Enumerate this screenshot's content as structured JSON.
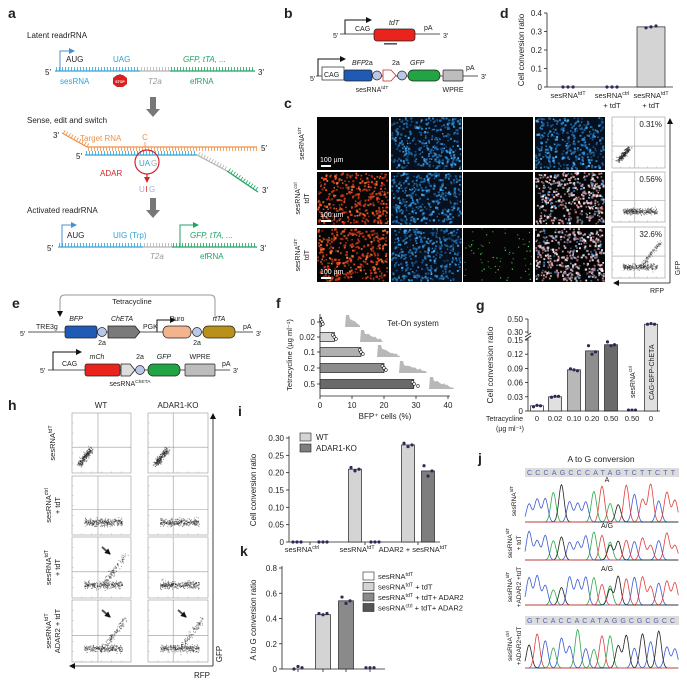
{
  "panel_labels": {
    "a": "a",
    "b": "b",
    "c": "c",
    "d": "d",
    "e": "e",
    "f": "f",
    "g": "g",
    "h": "h",
    "i": "i",
    "j": "j",
    "k": "k"
  },
  "ends": {
    "five": "5′",
    "three": "3′"
  },
  "colors": {
    "blue": "#2ea3d6",
    "gray": "#b3b3b3",
    "green": "#1fa463",
    "orange": "#ef9149",
    "red": "#d0262b",
    "pale": "#9fb3d9",
    "bfp": "#1f5bb5",
    "tdt": "#e8241d",
    "gfp": "#22a444",
    "wpre": "#bdbdbd",
    "puro": "#f2b48c",
    "rtta": "#b8901a",
    "cheta": "#7a7a7a",
    "dot": "#2b2b55"
  },
  "a": {
    "latent_title": "Latent readrRNA",
    "sense_title": "Sense, edit and switch",
    "activated_title": "Activated readrRNA",
    "aug": "AUG",
    "uag": "UAG",
    "payload": "GFP, tTA, ...",
    "sesrna": "sesRNA",
    "t2a": "T2a",
    "efrna": "efRNA",
    "stop": "STOP",
    "target_rna": "Target RNA",
    "c_base": "C",
    "ua": "UA",
    "g_base": "G",
    "adar": "ADAR",
    "uig": {
      "u": "U",
      "i": "I",
      "g": "G"
    },
    "uig_trp": "UIG (Trp)"
  },
  "b": {
    "cag": "CAG",
    "tdt": "tdT",
    "pa": "pA",
    "bfp": "BFP",
    "two_a": "2a",
    "gfp": "GFP",
    "wpre": "WPRE",
    "sesrna": {
      "base": "sesRNA",
      "sup": "tdT"
    }
  },
  "c": {
    "rows": [
      {
        "base": "sesRNA",
        "sup": "tdT"
      },
      {
        "base": "sesRNA",
        "sup": "ctrl",
        "line2": "tdT"
      },
      {
        "base": "sesRNA",
        "sup": "tdT",
        "line2": "tdT"
      }
    ],
    "scale_bar": "100 µm",
    "percentages": [
      "0.31%",
      "0.56%",
      "32.6%"
    ],
    "flow_xlabel": "RFP",
    "flow_ylabel": "GFP"
  },
  "e": {
    "tetracycline": "Tetracycline",
    "tre3g": "TRE3g",
    "bfp": "BFP",
    "cheta": "ChETA",
    "pgk": "PGK",
    "puro": "Puro",
    "rtta": "rtTA",
    "two_a": "2a",
    "pa": "pA",
    "cag": "CAG",
    "mch": "mCh",
    "gfp": "GFP",
    "wpre": "WPRE",
    "sesrna": {
      "base": "sesRNA",
      "sup": "ChETA"
    }
  },
  "h": {
    "columns": [
      "WT",
      "ADAR1-KO"
    ],
    "rows": [
      {
        "base": "sesRNA",
        "sup": "tdT"
      },
      {
        "base": "sesRNA",
        "sup": "ctrl",
        "line2": "+ tdT"
      },
      {
        "base": "sesRNA",
        "sup": "tdT",
        "line2": "+ tdT"
      },
      {
        "base": "sesRNA",
        "sup": "tdT",
        "line2": "ADAR2 + tdT"
      }
    ],
    "xlabel": "RFP",
    "ylabel": "GFP"
  },
  "j": {
    "title": "A to G conversion",
    "sequence_top": "CCCAGCCCATAGTCTTCTT",
    "sequence_bottom": "GTCACCACATAGGCGCGCC",
    "rows": [
      {
        "base": "sesRNA",
        "sup": "tdT"
      },
      {
        "base": "sesRNA",
        "sup": "tdT",
        "line2": "+ tdT"
      },
      {
        "base": "sesRNA",
        "sup": "tdT",
        "line2": "+ADAR2 +tdT"
      },
      {
        "base": "sesRNA",
        "sup": "ctrl",
        "line2": "+ADAR2+tdT"
      }
    ],
    "peak_calls": [
      "A",
      "A/G",
      "A/G"
    ],
    "base_colors": {
      "A": "#2eaa4a",
      "C": "#3b5bd6",
      "G": "#222222",
      "T": "#e04040"
    }
  },
  "chart_data": [
    {
      "type": "bar",
      "ylabel": "Cell conversion ratio",
      "ylim": [
        0,
        0.4
      ],
      "ytick_values": [
        0,
        0.1,
        0.2,
        0.3,
        0.4
      ],
      "ytick_labels": [
        "0",
        "0.1",
        "0.2",
        "0.3",
        "0.4"
      ],
      "categories": [
        {
          "base": "sesRNA",
          "sup": "tdT"
        },
        {
          "base": "sesRNA",
          "sup": "ctrl",
          "line2": "+ tdT"
        },
        {
          "base": "sesRNA",
          "sup": "tdT",
          "line2": "+ tdT"
        }
      ],
      "values": [
        0,
        0,
        0.325
      ],
      "points": [
        [
          0,
          0,
          0
        ],
        [
          0,
          0,
          0
        ],
        [
          0.32,
          0.325,
          0.33
        ]
      ],
      "bar_color": "#d4d4d4"
    },
    {
      "type": "bar",
      "orientation": "horizontal",
      "annotation": "Tet-On system",
      "ylabel": "Tetracycline (µg ml⁻¹)",
      "xlabel": "BFP⁺ cells (%)",
      "categories": [
        "0",
        "0.02",
        "0.1",
        "0.2",
        "0.5"
      ],
      "values": [
        0.5,
        4.5,
        12.8,
        20.0,
        29.3
      ],
      "points": [
        [
          0.2,
          0.6,
          0.9
        ],
        [
          4.0,
          4.5,
          5.0
        ],
        [
          12.4,
          12.8,
          13.4
        ],
        [
          19.5,
          20.0,
          20.6
        ],
        [
          28.9,
          29.4,
          30.6
        ]
      ],
      "xlim": [
        0,
        40
      ],
      "xtick_values": [
        0,
        10,
        20,
        30,
        40
      ],
      "xtick_labels": [
        "0",
        "10",
        "20",
        "30",
        "40"
      ],
      "bar_colors": [
        "#e8e8e8",
        "#d4d4d4",
        "#b0b0b0",
        "#8c8c8c",
        "#6a6a6a"
      ]
    },
    {
      "type": "bar",
      "ylabel": "Cell conversion ratio",
      "x_row_label": "Tetracycline",
      "x_row_unit": "(µg ml⁻¹)",
      "categories": [
        "0",
        "0.02",
        "0.10",
        "0.20",
        "0.50",
        "0.50",
        "0"
      ],
      "bar_annotations": [
        null,
        null,
        null,
        null,
        null,
        {
          "base": "sesRNA",
          "sup": "ctrl"
        },
        {
          "base": "CAG-BFP-ChETA"
        }
      ],
      "values": [
        0.011,
        0.03,
        0.087,
        0.127,
        0.14,
        0.002,
        0.42
      ],
      "points": [
        [
          0.009,
          0.012,
          0.011
        ],
        [
          0.029,
          0.031,
          0.031
        ],
        [
          0.089,
          0.087,
          0.085
        ],
        [
          0.138,
          0.12,
          0.125
        ],
        [
          0.146,
          0.138,
          0.14
        ],
        [
          0.002,
          0.002,
          0.002
        ],
        [
          0.42,
          0.43,
          0.42
        ]
      ],
      "ytick_values": [
        0,
        0.03,
        0.06,
        0.09,
        0.12,
        0.15,
        0.3,
        0.5
      ],
      "ytick_labels": [
        "0",
        "0.03",
        "0.06",
        "0.09",
        "0.12",
        "0.15",
        "0.30",
        "0.50"
      ],
      "axis_break": [
        0.15,
        0.3
      ],
      "bar_colors": [
        "#ffffff",
        "#e0e0e0",
        "#b8b8b8",
        "#8e8e8e",
        "#6a6a6a",
        "#ffffff",
        "#e0e0e0"
      ]
    },
    {
      "type": "bar",
      "ylabel": "Cell conversion ratio",
      "ylim": [
        0,
        0.3
      ],
      "ytick_values": [
        0,
        0.05,
        0.1,
        0.15,
        0.2,
        0.25,
        0.3
      ],
      "ytick_labels": [
        "0",
        "0.05",
        "0.10",
        "0.15",
        "0.20",
        "0.25",
        "0.30"
      ],
      "categories": [
        {
          "base": "sesRNA",
          "sup": "ctrl"
        },
        {
          "base": "sesRNA",
          "sup": "tdT"
        },
        {
          "base": "ADAR2 + sesRNA",
          "sup": "tdT"
        }
      ],
      "series": [
        {
          "name": "WT",
          "values": [
            0,
            0.21,
            0.28
          ],
          "points": [
            [
              0,
              0,
              0
            ],
            [
              0.215,
              0.205,
              0.21
            ],
            [
              0.285,
              0.275,
              0.28
            ]
          ],
          "color": "#d4d4d4"
        },
        {
          "name": "ADAR1-KO",
          "values": [
            0,
            0,
            0.205
          ],
          "points": [
            [
              0,
              0,
              0
            ],
            [
              0,
              0,
              0
            ],
            [
              0.22,
              0.19,
              0.205
            ]
          ],
          "color": "#7e7e7e"
        }
      ],
      "legend": "top-left"
    },
    {
      "type": "bar",
      "ylabel": "A to G conversion ratio",
      "ylim": [
        0,
        0.8
      ],
      "ytick_values": [
        0,
        0.2,
        0.4,
        0.6,
        0.8
      ],
      "ytick_labels": [
        "0",
        "0.2",
        "0.4",
        "0.6",
        "0.8"
      ],
      "series": [
        {
          "label": {
            "base": "sesRNA",
            "sup": "tdT"
          },
          "value": 0.01,
          "points": [
            0.0,
            0.02,
            0.01
          ],
          "color": "#ffffff"
        },
        {
          "label": {
            "base": "sesRNA",
            "sup": "tdT",
            "suffix": " + tdT"
          },
          "value": 0.43,
          "points": [
            0.44,
            0.43,
            0.44
          ],
          "color": "#d4d4d4"
        },
        {
          "label": {
            "base": "sesRNA",
            "sup": "tdT",
            "suffix": " + tdT+ ADAR2"
          },
          "value": 0.54,
          "points": [
            0.57,
            0.52,
            0.54
          ],
          "color": "#8a8a8a"
        },
        {
          "label": {
            "base": "sesRNA",
            "sup": "ctrl",
            "suffix": " + tdT+ ADAR2"
          },
          "value": 0.01,
          "points": [
            0.01,
            0.01,
            0.01
          ],
          "color": "#555555"
        }
      ],
      "legend": "right"
    }
  ]
}
